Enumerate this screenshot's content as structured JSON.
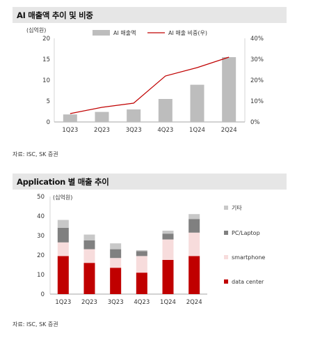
{
  "charts": [
    {
      "title": "AI 매출액 추이 및 비중",
      "source": "자료: ISC, SK 증권"
    },
    {
      "title": "Application 별 매출 추이",
      "source": "자료: ISC, SK 증권"
    }
  ],
  "chart_data": [
    {
      "type": "bar",
      "title": "AI 매출액 추이 및 비중",
      "unit_label": "(십억원)",
      "categories": [
        "1Q23",
        "2Q23",
        "3Q23",
        "4Q23",
        "1Q24",
        "2Q24"
      ],
      "series": [
        {
          "name": "AI 매출액",
          "type": "bar",
          "axis": "left",
          "color": "#bdbdbd",
          "values": [
            1.8,
            2.4,
            3.0,
            5.5,
            8.9,
            15.5
          ]
        },
        {
          "name": "AI 매출 비중(우)",
          "type": "line",
          "axis": "right",
          "color": "#c00000",
          "values": [
            4,
            7,
            9,
            22,
            26,
            31
          ]
        }
      ],
      "ylim": [
        0,
        20
      ],
      "yticks": [
        "0",
        "5",
        "10",
        "15",
        "20"
      ],
      "y2lim": [
        0,
        40
      ],
      "y2ticks": [
        "0%",
        "10%",
        "20%",
        "30%",
        "40%"
      ],
      "legend_position": "top"
    },
    {
      "type": "bar",
      "stacked": true,
      "title": "Application 별 매출 추이",
      "unit_label": "(십억원)",
      "categories": [
        "1Q23",
        "2Q23",
        "3Q23",
        "4Q23",
        "1Q24",
        "2Q24"
      ],
      "series": [
        {
          "name": "data center",
          "color": "#c00000",
          "values": [
            19.5,
            16,
            13.5,
            11,
            17.5,
            19.5
          ]
        },
        {
          "name": "smartphone",
          "color": "#f7dcdc",
          "values": [
            7,
            7,
            5,
            8.5,
            10.5,
            12
          ]
        },
        {
          "name": "PC/Laptop",
          "color": "#808080",
          "values": [
            7.5,
            4.5,
            4.5,
            2.5,
            3,
            7
          ]
        },
        {
          "name": "기타",
          "color": "#c8c8c8",
          "values": [
            4,
            3,
            3,
            0.5,
            1.5,
            2.5
          ]
        }
      ],
      "ylim": [
        0,
        50
      ],
      "yticks": [
        "0",
        "10",
        "20",
        "30",
        "40",
        "50"
      ],
      "legend_position": "right"
    }
  ]
}
